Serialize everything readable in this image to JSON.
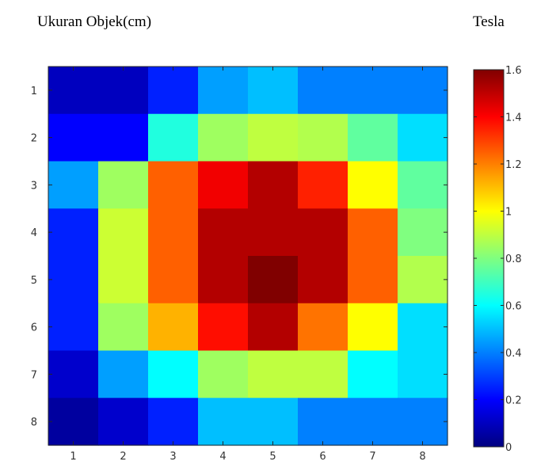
{
  "captions": {
    "left": "Ukuran Objek(cm)",
    "right": "Tesla"
  },
  "chart_data": {
    "type": "heatmap",
    "title": "",
    "xlabel": "",
    "ylabel": "",
    "x": [
      1,
      2,
      3,
      4,
      5,
      6,
      7,
      8
    ],
    "y": [
      1,
      2,
      3,
      4,
      5,
      6,
      7,
      8
    ],
    "y_direction": "top-to-bottom",
    "values": [
      [
        0.1,
        0.1,
        0.25,
        0.45,
        0.5,
        0.4,
        0.4,
        0.4
      ],
      [
        0.2,
        0.2,
        0.65,
        0.85,
        0.9,
        0.88,
        0.75,
        0.55
      ],
      [
        0.45,
        0.85,
        1.25,
        1.42,
        1.52,
        1.35,
        1.0,
        0.75
      ],
      [
        0.25,
        0.92,
        1.25,
        1.52,
        1.52,
        1.52,
        1.25,
        0.8
      ],
      [
        0.25,
        0.92,
        1.25,
        1.52,
        1.6,
        1.52,
        1.25,
        0.88
      ],
      [
        0.25,
        0.85,
        1.12,
        1.38,
        1.52,
        1.22,
        1.0,
        0.55
      ],
      [
        0.12,
        0.45,
        0.6,
        0.85,
        0.9,
        0.9,
        0.6,
        0.55
      ],
      [
        0.05,
        0.12,
        0.25,
        0.5,
        0.5,
        0.4,
        0.4,
        0.4
      ]
    ],
    "x_ticks": [
      1,
      2,
      3,
      4,
      5,
      6,
      7,
      8
    ],
    "y_ticks": [
      1,
      2,
      3,
      4,
      5,
      6,
      7,
      8
    ],
    "colorbar": {
      "colormap": "jet",
      "range": [
        0,
        1.6
      ],
      "ticks": [
        0,
        0.2,
        0.4,
        0.6,
        0.8,
        1,
        1.2,
        1.4,
        1.6
      ],
      "tick_labels": [
        "0",
        "0.2",
        "0.4",
        "0.6",
        "0.8",
        "1",
        "1.2",
        "1.4",
        "1.6"
      ],
      "placement": "right"
    },
    "grid": false,
    "legend": "none"
  }
}
